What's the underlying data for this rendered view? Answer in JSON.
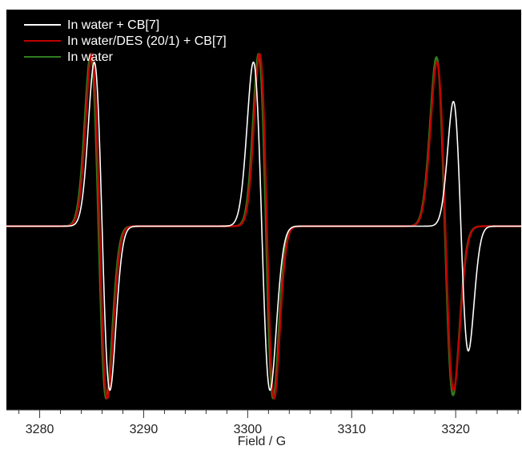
{
  "chart_data": {
    "type": "line",
    "title": "",
    "xlabel": "Field / G",
    "ylabel": "",
    "xlim": [
      3276.8,
      3326.3
    ],
    "ylim": [
      -1.12,
      1.32
    ],
    "grid": false,
    "background": "#000000",
    "legend_position": "top-left",
    "x_ticks": [
      3280,
      3290,
      3300,
      3310,
      3320
    ],
    "x_tick_labels": [
      "3280",
      "3290",
      "3300",
      "3310",
      "3320"
    ],
    "minor_tick_step": 2,
    "series": [
      {
        "name": "In water + CB[7]",
        "color": "#ffffff",
        "lines": [
          {
            "center": 3286.0,
            "dx": 0.75,
            "amplitude": 1.0
          },
          {
            "center": 3301.35,
            "dx": 0.8,
            "amplitude": 1.0
          },
          {
            "center": 3320.5,
            "dx": 0.72,
            "amplitude": 0.76
          }
        ]
      },
      {
        "name": "In water/DES  (20/1) + CB[7]",
        "color": "#c00000",
        "lines": [
          {
            "center": 3285.75,
            "dx": 0.75,
            "amplitude": 1.05
          },
          {
            "center": 3301.85,
            "dx": 0.7,
            "amplitude": 1.05
          },
          {
            "center": 3319.0,
            "dx": 0.8,
            "amplitude": 1.0
          }
        ]
      },
      {
        "name": "In water",
        "color": "#2e7d1e",
        "lines": [
          {
            "center": 3285.65,
            "dx": 0.75,
            "amplitude": 1.05
          },
          {
            "center": 3301.75,
            "dx": 0.7,
            "amplitude": 1.05
          },
          {
            "center": 3318.95,
            "dx": 0.8,
            "amplitude": 1.03
          }
        ]
      }
    ]
  }
}
